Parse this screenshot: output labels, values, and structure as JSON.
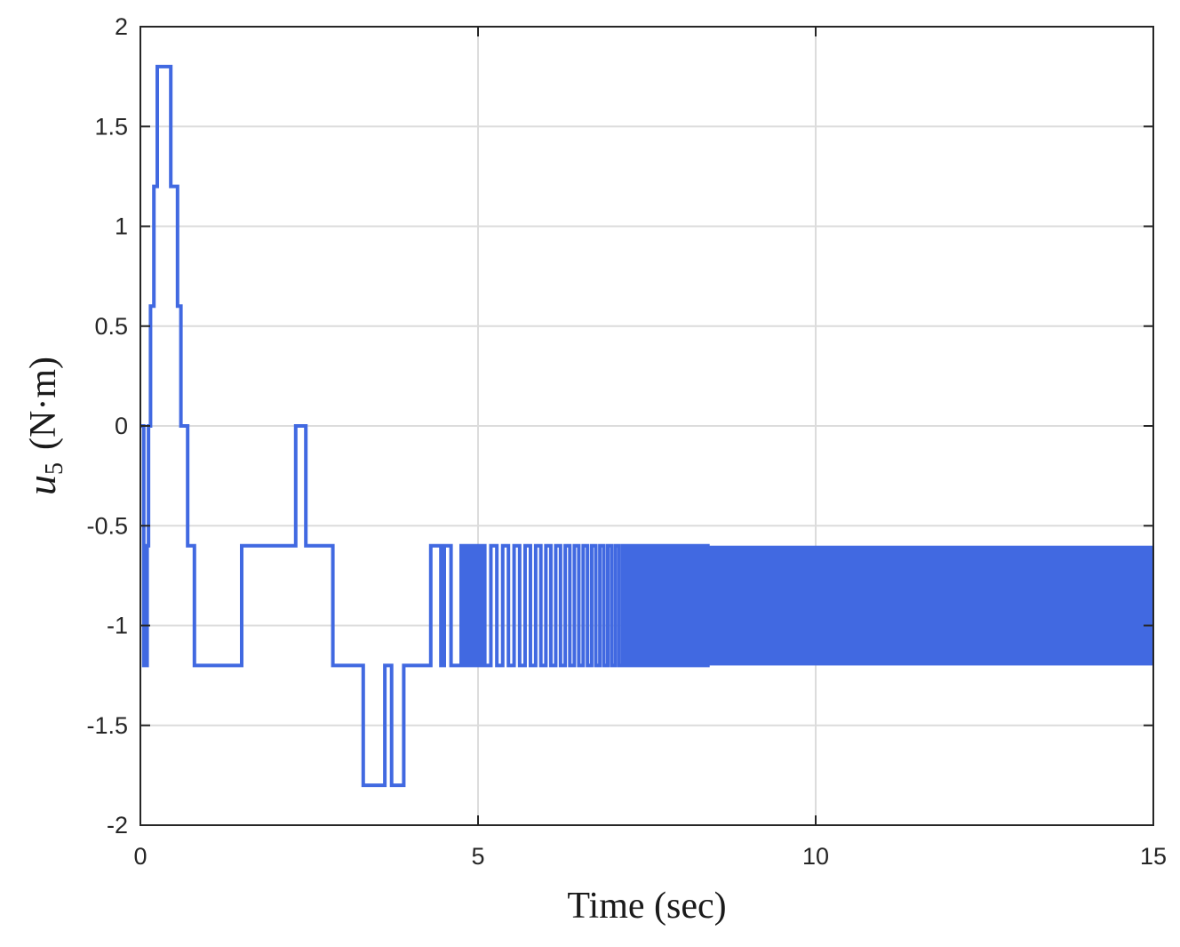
{
  "chart_data": {
    "type": "line",
    "title": "",
    "xlabel": "Time (sec)",
    "ylabel_parts": {
      "var": "u",
      "sub": "5",
      "unit": "(N·m)"
    },
    "xlim": [
      0,
      15
    ],
    "ylim": [
      -2,
      2
    ],
    "xticks": [
      0,
      5,
      10,
      15
    ],
    "xtick_labels": [
      "0",
      "5",
      "10",
      "15"
    ],
    "yticks": [
      -2,
      -1.5,
      -1,
      -0.5,
      0,
      0.5,
      1,
      1.5,
      2
    ],
    "ytick_labels": [
      "-2",
      "-1.5",
      "-1",
      "-0.5",
      "0",
      "0.5",
      "1",
      "1.5",
      "2"
    ],
    "grid": true,
    "line_color": "#4169E1",
    "series": [
      {
        "style": "stairs",
        "points": [
          [
            0.0,
            0.0
          ],
          [
            0.05,
            -1.2
          ],
          [
            0.1,
            -0.6
          ],
          [
            0.12,
            0.0
          ],
          [
            0.15,
            0.6
          ],
          [
            0.2,
            1.2
          ],
          [
            0.25,
            1.8
          ],
          [
            0.45,
            1.2
          ],
          [
            0.55,
            0.6
          ],
          [
            0.6,
            0.0
          ],
          [
            0.7,
            -0.6
          ],
          [
            0.8,
            -1.2
          ],
          [
            1.5,
            -0.6
          ],
          [
            2.3,
            0.0
          ],
          [
            2.45,
            -0.6
          ],
          [
            2.85,
            -1.2
          ],
          [
            3.3,
            -1.8
          ],
          [
            3.62,
            -1.2
          ],
          [
            3.72,
            -1.8
          ],
          [
            3.9,
            -1.2
          ],
          [
            4.3,
            -0.6
          ],
          [
            4.45,
            -1.2
          ],
          [
            4.5,
            -0.6
          ],
          [
            4.6,
            -1.2
          ],
          [
            4.75,
            -0.6
          ],
          [
            4.8,
            -1.2
          ],
          [
            4.85,
            -0.6
          ],
          [
            4.9,
            -1.2
          ],
          [
            4.95,
            -0.6
          ],
          [
            5.0,
            -1.2
          ],
          [
            5.05,
            -0.6
          ],
          [
            5.1,
            -1.2
          ]
        ]
      }
    ],
    "oscillation": {
      "t_start": 5.1,
      "t_dense": 8.4,
      "t_end": 15.0,
      "period_start": 0.18,
      "period_end": 0.06,
      "low": -1.2,
      "high": -0.6
    }
  }
}
